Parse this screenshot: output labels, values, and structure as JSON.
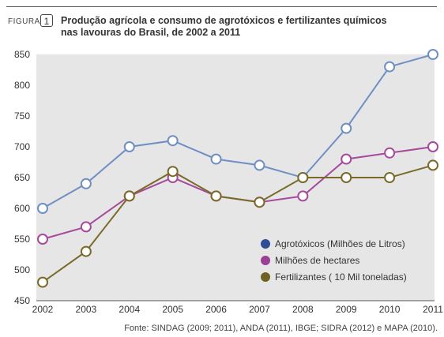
{
  "figure": {
    "label": "FIGURA",
    "number": "1",
    "title_line1": "Produção agrícola e consumo de agrotóxicos e fertilizantes químicos",
    "title_line2": "nas lavouras do Brasil, de 2002 a 2011",
    "source": "Fonte: SINDAG (2009; 2011), ANDA (2011), IBGE; SIDRA (2012) e MAPA (2010)."
  },
  "chart_data": {
    "type": "line",
    "x": [
      2002,
      2003,
      2004,
      2005,
      2006,
      2007,
      2008,
      2009,
      2010,
      2011
    ],
    "ylim": [
      450,
      850
    ],
    "yticks": [
      450,
      500,
      550,
      600,
      650,
      700,
      750,
      800,
      850
    ],
    "grid": false,
    "legend_position": "bottom-right",
    "series": [
      {
        "name": "Agrotóxicos (Milhões de Litros)",
        "color": "#6f8fc4",
        "legend_color": "#2f4d97",
        "values": [
          600,
          640,
          700,
          710,
          680,
          670,
          650,
          730,
          830,
          850
        ]
      },
      {
        "name": "Milhões de hectares",
        "color": "#a64a9c",
        "legend_color": "#9b3f94",
        "values": [
          550,
          570,
          620,
          650,
          620,
          610,
          620,
          680,
          690,
          700
        ]
      },
      {
        "name": "Fertilizantes ( 10 Mil toneladas)",
        "color": "#7a6a2a",
        "legend_color": "#6e6325",
        "values": [
          480,
          530,
          620,
          660,
          620,
          610,
          650,
          650,
          650,
          670
        ]
      }
    ]
  }
}
